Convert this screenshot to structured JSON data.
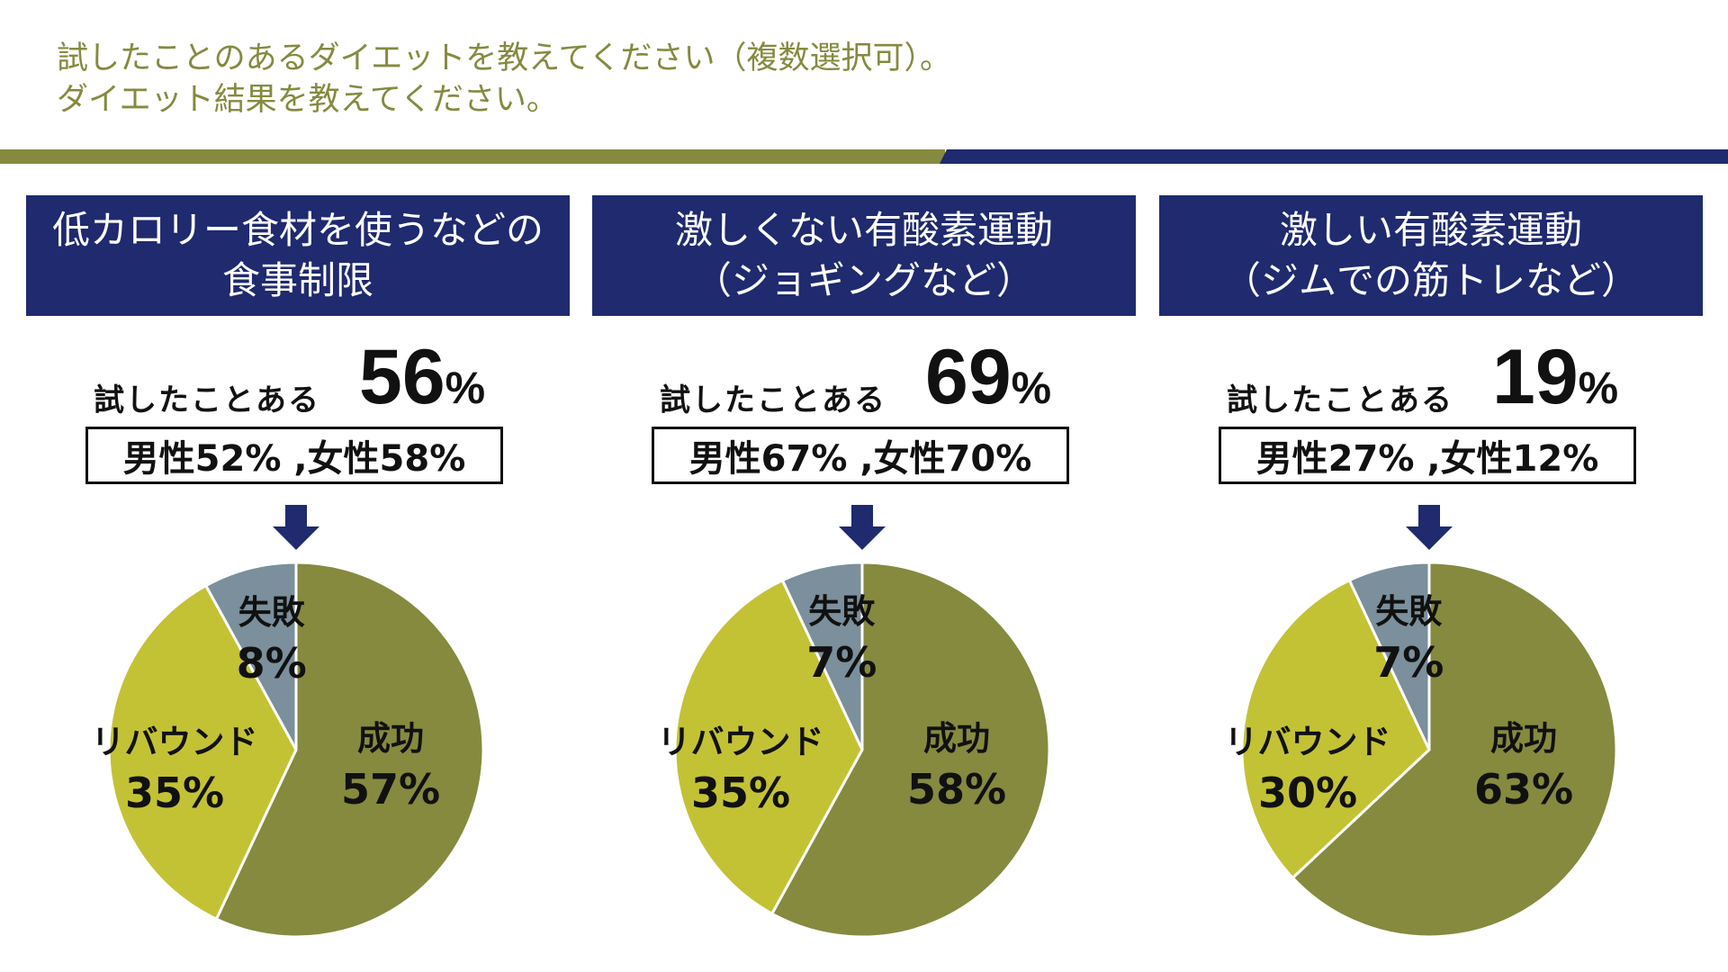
{
  "header": {
    "question1": "試したことのあるダイエットを教えてください（複数選択可）。",
    "question2": "ダイエット結果を教えてください。"
  },
  "common": {
    "tried_label": "試したことある",
    "pct_sign": "%"
  },
  "colors": {
    "navy": "#1f2a6f",
    "olive": "#858a3f",
    "success": "#858a3f",
    "rebound": "#c3c235",
    "failure": "#7b8f9c"
  },
  "panels": [
    {
      "title_line1": "低カロリー食材を使うなどの",
      "title_line2": "食事制限",
      "tried_value": "56",
      "gender_text": "男性52% ,女性58%"
    },
    {
      "title_line1": "激しくない有酸素運動",
      "title_line2": "（ジョギングなど）",
      "tried_value": "69",
      "gender_text": "男性67% ,女性70%"
    },
    {
      "title_line1": "激しい有酸素運動",
      "title_line2": "（ジムでの筋トレなど）",
      "tried_value": "19",
      "gender_text": "男性27% ,女性12%"
    }
  ],
  "chart_data": [
    {
      "type": "pie",
      "title": "低カロリー食材を使うなどの食事制限",
      "categories": [
        "成功",
        "リバウンド",
        "失敗"
      ],
      "values": [
        57,
        35,
        8
      ],
      "labels": [
        "57%",
        "35%",
        "8%"
      ]
    },
    {
      "type": "pie",
      "title": "激しくない有酸素運動（ジョギングなど）",
      "categories": [
        "成功",
        "リバウンド",
        "失敗"
      ],
      "values": [
        58,
        35,
        7
      ],
      "labels": [
        "58%",
        "35%",
        "7%"
      ]
    },
    {
      "type": "pie",
      "title": "激しい有酸素運動（ジムでの筋トレなど）",
      "categories": [
        "成功",
        "リバウンド",
        "失敗"
      ],
      "values": [
        63,
        30,
        7
      ],
      "labels": [
        "63%",
        "30%",
        "7%"
      ]
    }
  ]
}
